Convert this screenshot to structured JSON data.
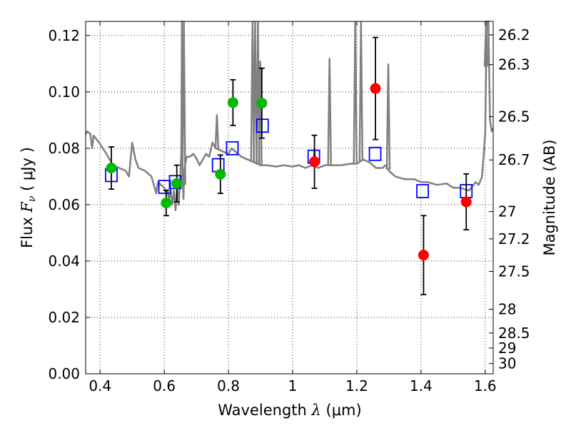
{
  "chart_data": {
    "type": "scatter",
    "xlabel_prefix": "Wavelength  ",
    "xlabel_symbol": "λ",
    "xlabel_unit": " (μm)",
    "ylabel_prefix": "Flux  ",
    "ylabel_symbol": "F",
    "ylabel_sub": "ν",
    "ylabel_unit": "  ( μJy )",
    "y2label": "Magnitude (AB)",
    "xlim": [
      0.355,
      1.625
    ],
    "ylim": [
      0.0,
      0.125
    ],
    "xticks": [
      0.4,
      0.6,
      0.8,
      1.0,
      1.2,
      1.4,
      1.6
    ],
    "xtick_labels": [
      "0.4",
      "0.6",
      "0.8",
      "1",
      "1.2",
      "1.4",
      "1.6"
    ],
    "yticks": [
      0.0,
      0.02,
      0.04,
      0.06,
      0.08,
      0.1,
      0.12
    ],
    "ytick_labels": [
      "0.00",
      "0.02",
      "0.04",
      "0.06",
      "0.08",
      "0.10",
      "0.12"
    ],
    "magnitude_ticks": [
      "26.2",
      "26.3",
      "26.5",
      "26.7",
      "27",
      "27.2",
      "27.5",
      "28",
      "28.5",
      "29",
      "30"
    ],
    "grid": true,
    "colors": {
      "sed": "#808080",
      "model": "#0000ff",
      "green": "#00bb00",
      "red": "#ff0000",
      "errorbar": "#000000"
    },
    "series": [
      {
        "name": "Observed (green)",
        "x": [
          0.435,
          0.606,
          0.639,
          0.775,
          0.814,
          0.904
        ],
        "y": [
          0.073,
          0.0606,
          0.0675,
          0.0708,
          0.0962,
          0.096
        ],
        "yerr": [
          0.0075,
          0.0045,
          0.0065,
          0.0068,
          0.0081,
          0.0124
        ]
      },
      {
        "name": "Observed (red)",
        "x": [
          1.068,
          1.258,
          1.408,
          1.541
        ],
        "y": [
          0.0752,
          0.1012,
          0.0421,
          0.061
        ],
        "yerr": [
          0.0094,
          0.0181,
          0.014,
          0.0099
        ]
      },
      {
        "name": "Model photometry",
        "x": [
          0.435,
          0.601,
          0.634,
          0.768,
          0.812,
          0.906,
          1.066,
          1.257,
          1.405,
          1.541
        ],
        "y": [
          0.0705,
          0.0663,
          0.068,
          0.074,
          0.08,
          0.088,
          0.077,
          0.078,
          0.0648,
          0.0648
        ]
      },
      {
        "name": "SED",
        "x": [
          0.355,
          0.36,
          0.37,
          0.375,
          0.38,
          0.39,
          0.4,
          0.42,
          0.44,
          0.46,
          0.48,
          0.49,
          0.5,
          0.51,
          0.52,
          0.54,
          0.56,
          0.575,
          0.58,
          0.59,
          0.6,
          0.605,
          0.61,
          0.615,
          0.62,
          0.625,
          0.63,
          0.635,
          0.64,
          0.645,
          0.65,
          0.653,
          0.655,
          0.657,
          0.66,
          0.662,
          0.67,
          0.68,
          0.69,
          0.7,
          0.71,
          0.72,
          0.73,
          0.74,
          0.75,
          0.76,
          0.78,
          0.8,
          0.81,
          0.82,
          0.84,
          0.86,
          0.88,
          0.9,
          0.92,
          0.95,
          0.97,
          1.0,
          1.02,
          1.04,
          1.06,
          1.08,
          1.1,
          1.15,
          1.18,
          1.2,
          1.22,
          1.24,
          1.26,
          1.28,
          1.29,
          1.3,
          1.32,
          1.35,
          1.38,
          1.4,
          1.42,
          1.45,
          1.48,
          1.5,
          1.52,
          1.55,
          1.57,
          1.58,
          1.59,
          1.6,
          1.605,
          1.61,
          1.615,
          1.62,
          1.625
        ],
        "y": [
          0.085,
          0.086,
          0.085,
          0.08,
          0.0845,
          0.083,
          0.0815,
          0.078,
          0.074,
          0.073,
          0.072,
          0.07,
          0.082,
          0.076,
          0.073,
          0.072,
          0.07,
          0.064,
          0.068,
          0.067,
          0.066,
          0.064,
          0.065,
          0.062,
          0.065,
          0.06,
          0.065,
          0.058,
          0.066,
          0.06,
          0.07,
          0.078,
          0.125,
          0.07,
          0.062,
          0.072,
          0.077,
          0.077,
          0.078,
          0.0765,
          0.074,
          0.076,
          0.078,
          0.077,
          0.082,
          0.08,
          0.079,
          0.078,
          0.08,
          0.079,
          0.077,
          0.076,
          0.075,
          0.074,
          0.074,
          0.0735,
          0.074,
          0.0735,
          0.074,
          0.073,
          0.074,
          0.073,
          0.074,
          0.074,
          0.0745,
          0.0745,
          0.076,
          0.075,
          0.073,
          0.073,
          0.074,
          0.072,
          0.07,
          0.069,
          0.069,
          0.068,
          0.068,
          0.067,
          0.0675,
          0.066,
          0.066,
          0.065,
          0.068,
          0.067,
          0.07,
          0.085,
          0.125,
          0.125,
          0.09,
          0.086,
          0.087
        ]
      },
      {
        "name": "Emission lines",
        "x": [
          0.661,
          0.764,
          0.875,
          0.883,
          0.892,
          0.899,
          1.068,
          1.115,
          1.195,
          1.213,
          1.298,
          1.603
        ],
        "peak": [
          0.125,
          0.092,
          0.125,
          0.125,
          0.125,
          0.111,
          0.08,
          0.112,
          0.125,
          0.125,
          0.11,
          0.125
        ]
      }
    ]
  }
}
